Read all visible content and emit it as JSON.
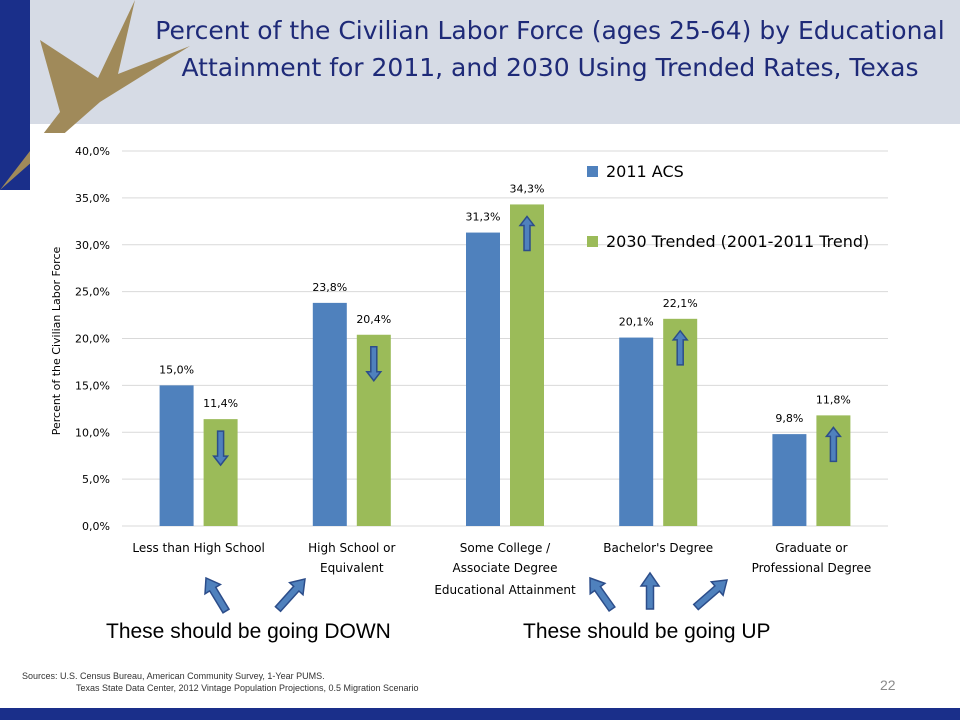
{
  "slide": {
    "title": "Percent of the Civilian Labor Force (ages 25-64) by Educational Attainment for 2011, and 2030 Using Trended Rates, Texas",
    "note_down": "These should be going DOWN",
    "note_up": "These should be going UP",
    "sources_line1": "Sources: U.S. Census Bureau, American Community Survey, 1-Year PUMS.",
    "sources_line2": "Texas State Data Center, 2012 Vintage Population Projections, 0.5 Migration Scenario",
    "page_number": "22"
  },
  "chart_data": {
    "type": "bar",
    "categories": [
      [
        "Less than High School"
      ],
      [
        "High School or",
        "Equivalent"
      ],
      [
        "Some College /",
        "Associate Degree"
      ],
      [
        "Bachelor's Degree"
      ],
      [
        "Graduate or",
        "Professional Degree"
      ]
    ],
    "series": [
      {
        "name": "2011 ACS",
        "color": "#4f81bd",
        "values": [
          15.0,
          23.8,
          31.3,
          20.1,
          9.8
        ],
        "labels": [
          "15,0%",
          "23,8%",
          "31,3%",
          "20,1%",
          "9,8%"
        ]
      },
      {
        "name": "2030 Trended (2001-2011 Trend)",
        "color": "#9bbb59",
        "values": [
          11.4,
          20.4,
          34.3,
          22.1,
          11.8
        ],
        "labels": [
          "11,4%",
          "20,4%",
          "34,3%",
          "22,1%",
          "11,8%"
        ]
      }
    ],
    "trend_arrows": [
      "down",
      "down",
      "up",
      "up",
      "up"
    ],
    "ylim": [
      0,
      40
    ],
    "y_ticks": [
      "0,0%",
      "5,0%",
      "10,0%",
      "15,0%",
      "20,0%",
      "25,0%",
      "30,0%",
      "35,0%",
      "40,0%"
    ],
    "xlabel": "Educational Attainment",
    "ylabel": "Percent of the Civilian Labor Force",
    "legend_position": "top-right",
    "grid": true
  },
  "colors": {
    "title": "#1e2a78",
    "band": "#1a2f8a",
    "star": "#a08a5a",
    "arrow_fill": "#4f81bd",
    "arrow_stroke": "#2c4d8a"
  }
}
